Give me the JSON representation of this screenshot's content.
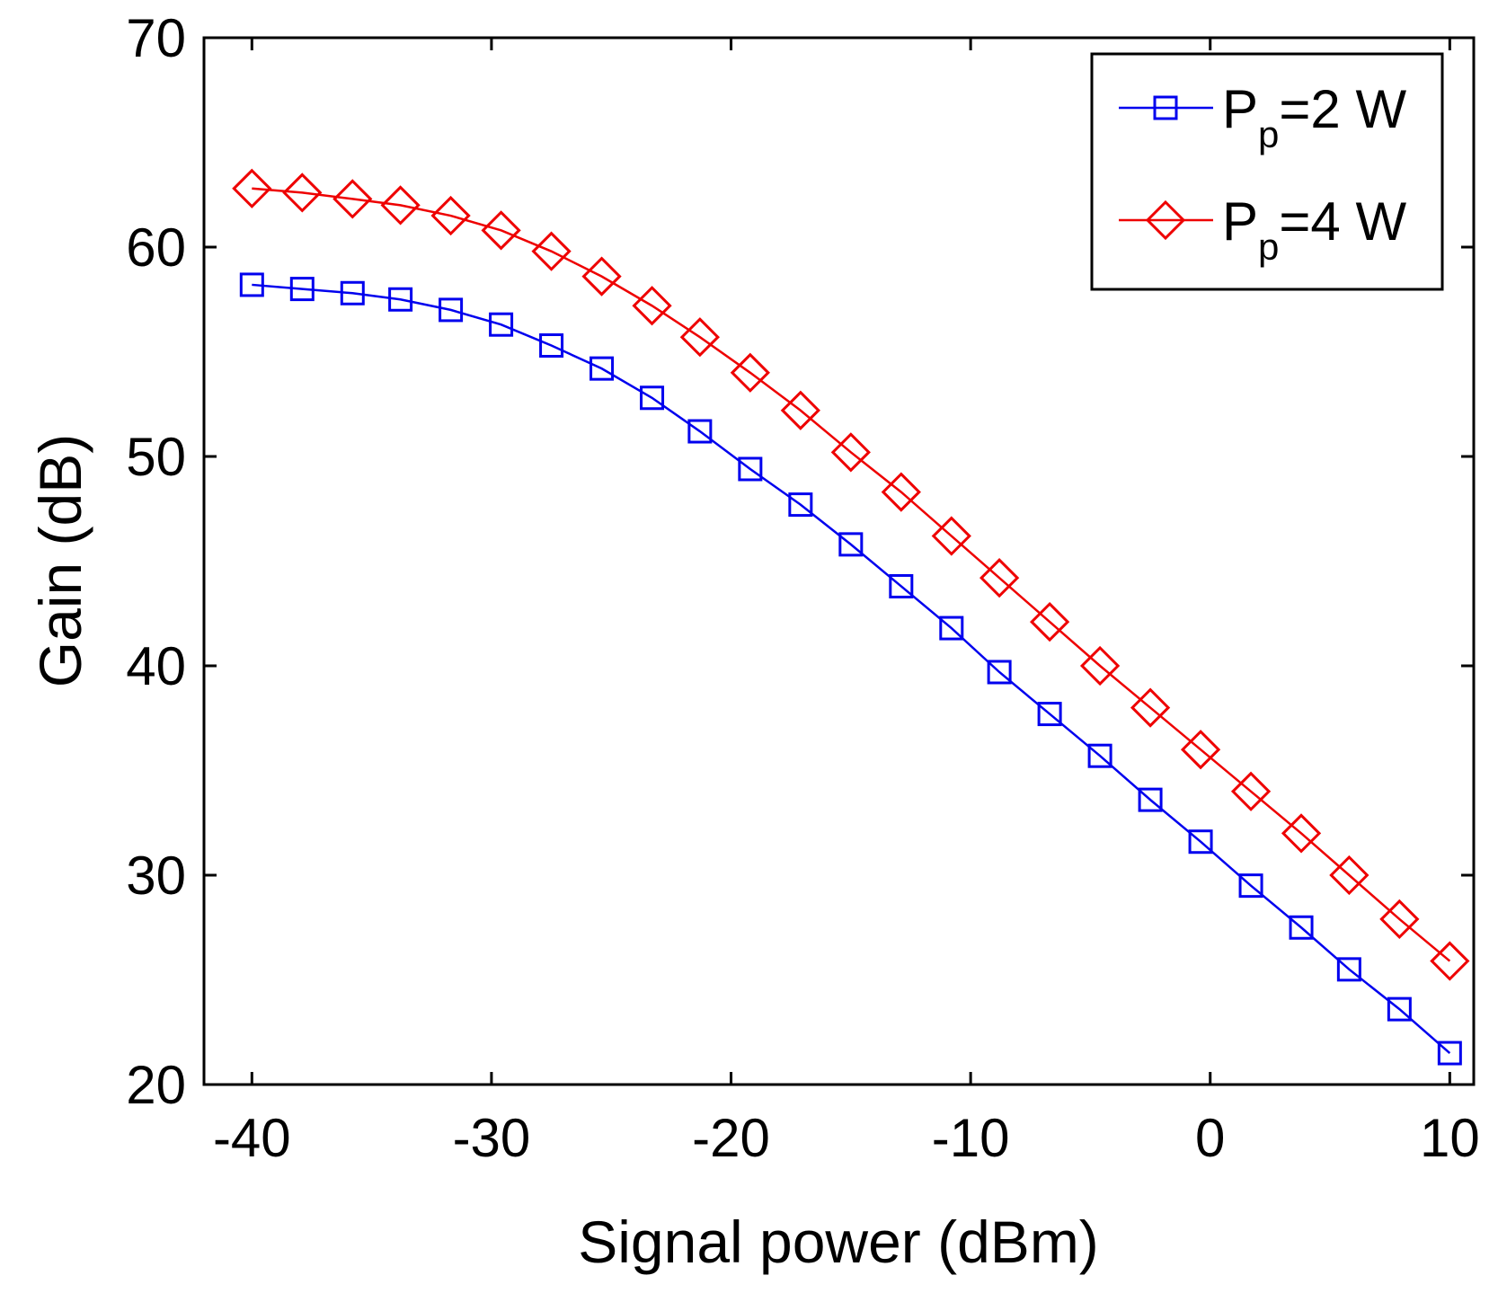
{
  "chart_data": {
    "type": "line",
    "title": "",
    "xlabel": "Signal power (dBm)",
    "ylabel": "Gain (dB)",
    "xlim": [
      -42,
      11
    ],
    "ylim": [
      20,
      70
    ],
    "xticks": [
      -40,
      -30,
      -20,
      -10,
      0,
      10
    ],
    "xtick_labels": [
      "-40",
      "-30",
      "-20",
      "-10",
      "0",
      "10"
    ],
    "yticks": [
      20,
      30,
      40,
      50,
      60,
      70
    ],
    "ytick_labels": [
      "20",
      "30",
      "40",
      "50",
      "60",
      "70"
    ],
    "grid": false,
    "legend_position": "top-right",
    "x": [
      -40,
      -37.9,
      -35.8,
      -33.8,
      -31.7,
      -29.6,
      -27.5,
      -25.4,
      -23.3,
      -21.3,
      -19.2,
      -17.1,
      -15.0,
      -12.9,
      -10.8,
      -8.8,
      -6.7,
      -4.6,
      -2.5,
      -0.4,
      1.7,
      3.8,
      5.8,
      7.9,
      10.0
    ],
    "series": [
      {
        "name": "P_p=2 W",
        "legend_main": "P",
        "legend_sub": "p",
        "legend_rest": "=2 W",
        "color": "#0000ee",
        "marker": "square",
        "values": [
          58.2,
          58.0,
          57.8,
          57.5,
          57.0,
          56.3,
          55.3,
          54.2,
          52.8,
          51.2,
          49.4,
          47.7,
          45.8,
          43.8,
          41.8,
          39.7,
          37.7,
          35.7,
          33.6,
          31.6,
          29.5,
          27.5,
          25.5,
          23.6,
          21.5
        ]
      },
      {
        "name": "P_p=4 W",
        "legend_main": "P",
        "legend_sub": "p",
        "legend_rest": "=4 W",
        "color": "#ee0000",
        "marker": "diamond",
        "values": [
          62.8,
          62.6,
          62.3,
          62.0,
          61.5,
          60.8,
          59.8,
          58.6,
          57.2,
          55.7,
          54.0,
          52.2,
          50.2,
          48.3,
          46.2,
          44.2,
          42.1,
          40.0,
          38.0,
          36.0,
          34.0,
          32.0,
          30.0,
          27.9,
          25.9
        ]
      }
    ]
  }
}
